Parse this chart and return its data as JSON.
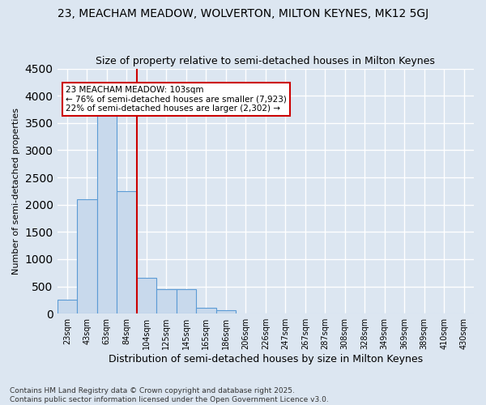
{
  "title1": "23, MEACHAM MEADOW, WOLVERTON, MILTON KEYNES, MK12 5GJ",
  "title2": "Size of property relative to semi-detached houses in Milton Keynes",
  "xlabel": "Distribution of semi-detached houses by size in Milton Keynes",
  "ylabel": "Number of semi-detached properties",
  "footer1": "Contains HM Land Registry data © Crown copyright and database right 2025.",
  "footer2": "Contains public sector information licensed under the Open Government Licence v3.0.",
  "bin_labels": [
    "23sqm",
    "43sqm",
    "63sqm",
    "84sqm",
    "104sqm",
    "125sqm",
    "145sqm",
    "165sqm",
    "186sqm",
    "206sqm",
    "226sqm",
    "247sqm",
    "267sqm",
    "287sqm",
    "308sqm",
    "328sqm",
    "349sqm",
    "369sqm",
    "389sqm",
    "410sqm",
    "430sqm"
  ],
  "bar_heights": [
    250,
    2100,
    3650,
    2250,
    650,
    450,
    450,
    100,
    60,
    0,
    0,
    0,
    0,
    0,
    0,
    0,
    0,
    0,
    0,
    0,
    0
  ],
  "bar_color": "#c8d9ec",
  "bar_edge_color": "#5b9bd5",
  "background_color": "#dce6f1",
  "grid_color": "#ffffff",
  "annotation_box_color": "#ffffff",
  "annotation_box_edge": "#cc0000",
  "vline_color": "#cc0000",
  "vline_x_index": 4,
  "annotation_text_line1": "23 MEACHAM MEADOW: 103sqm",
  "annotation_text_line2": "← 76% of semi-detached houses are smaller (7,923)",
  "annotation_text_line3": "22% of semi-detached houses are larger (2,302) →",
  "ylim": [
    0,
    4500
  ],
  "yticks": [
    0,
    500,
    1000,
    1500,
    2000,
    2500,
    3000,
    3500,
    4000,
    4500
  ]
}
